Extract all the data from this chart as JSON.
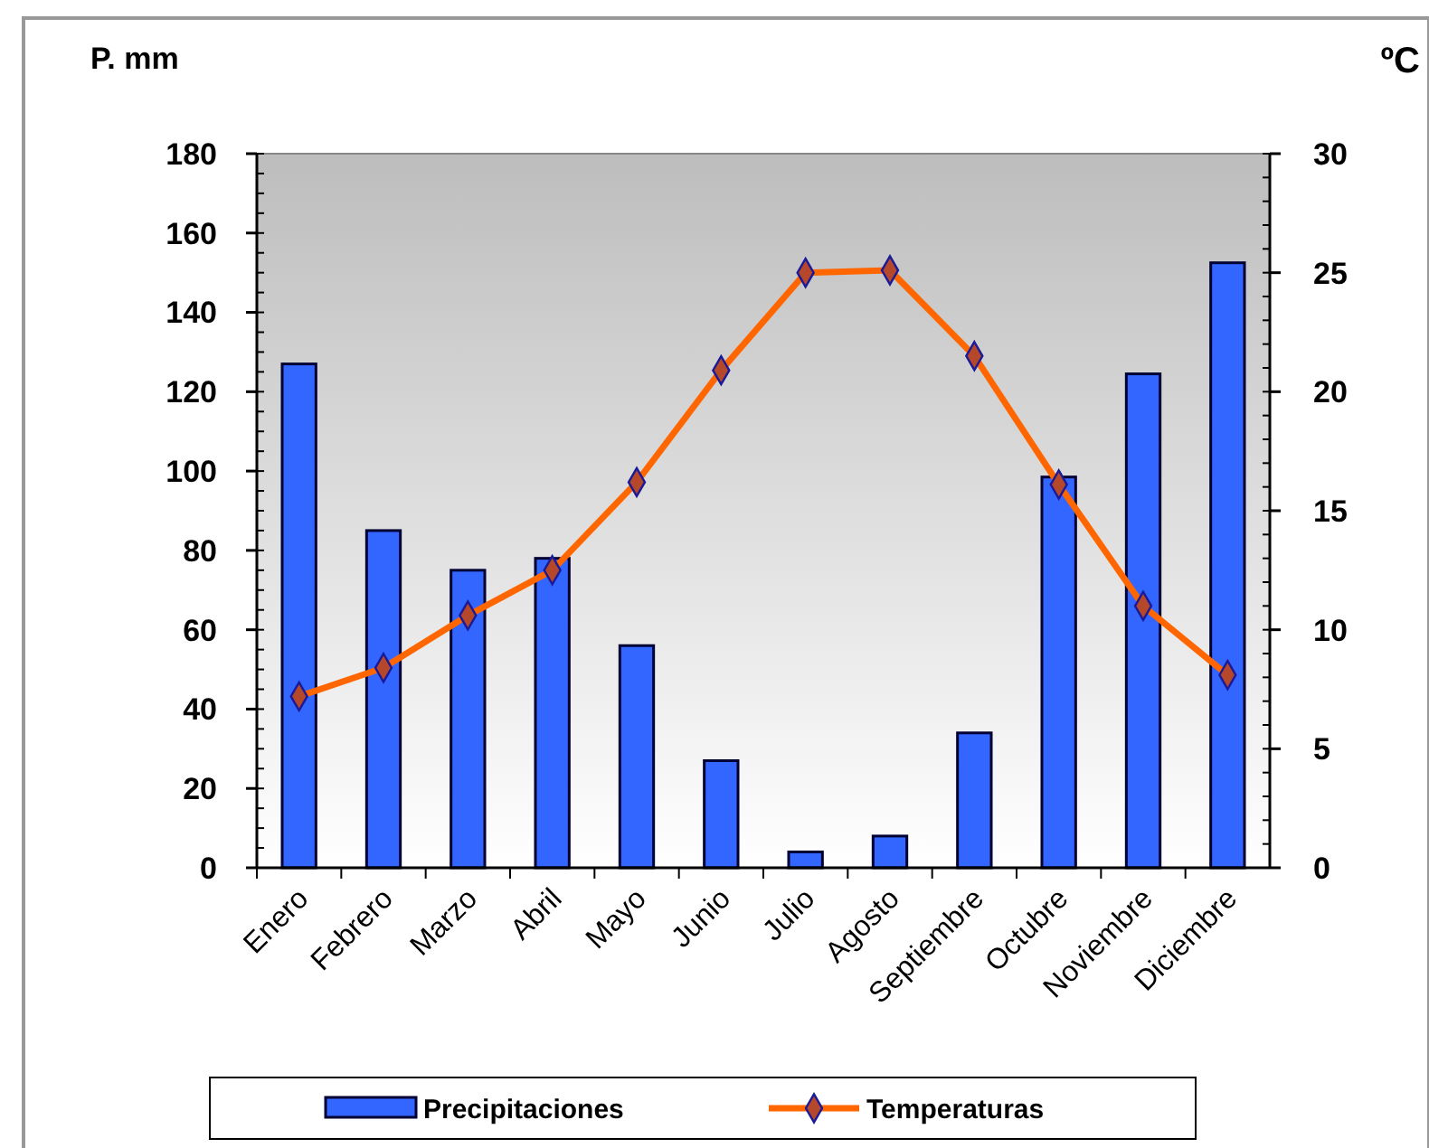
{
  "chart_data": {
    "type": "bar",
    "ylabel": "P. mm",
    "y2label": "ºC",
    "categories": [
      "Enero",
      "Febrero",
      "Marzo",
      "Abril",
      "Mayo",
      "Junio",
      "Julio",
      "Agosto",
      "Septiembre",
      "Octubre",
      "Noviembre",
      "Diciembre"
    ],
    "series": [
      {
        "name": "Precipitaciones",
        "color": "#3366ff",
        "values": [
          127,
          85,
          75,
          78,
          56,
          27,
          4,
          8,
          34,
          98.5,
          124.5,
          152.5
        ]
      },
      {
        "name": "Temperaturas",
        "type": "line",
        "axis": "y2",
        "color": "#ff6600",
        "marker": "diamond",
        "values": [
          7.2,
          8.4,
          10.6,
          12.5,
          16.2,
          20.9,
          25,
          25.1,
          21.5,
          16.1,
          11,
          8.1
        ]
      }
    ],
    "ylim": [
      0,
      180
    ],
    "yticks": [
      0,
      20,
      40,
      60,
      80,
      100,
      120,
      140,
      160,
      180
    ],
    "y2lim": [
      0,
      30
    ],
    "y2ticks": [
      0,
      5,
      10,
      15,
      20,
      25,
      30
    ],
    "grid": false,
    "legend": "bottom"
  }
}
